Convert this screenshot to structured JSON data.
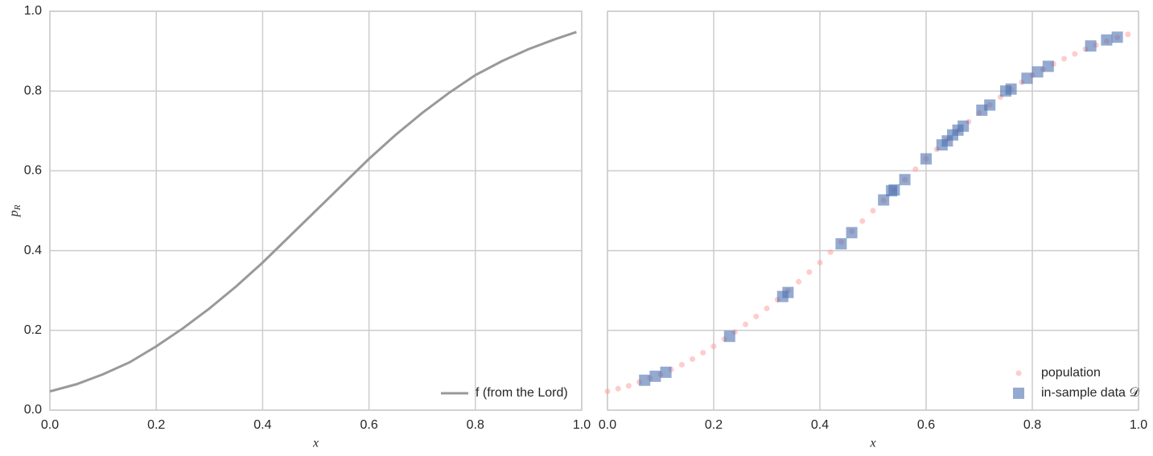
{
  "chart_data": [
    {
      "type": "line",
      "x": [
        0,
        0.05,
        0.1,
        0.15,
        0.2,
        0.25,
        0.3,
        0.35,
        0.4,
        0.45,
        0.5,
        0.55,
        0.6,
        0.65,
        0.7,
        0.75,
        0.8,
        0.85,
        0.9,
        0.95,
        0.99
      ],
      "series": [
        {
          "name": "f (from the Lord)",
          "color": "#999999",
          "values": [
            0.047,
            0.065,
            0.09,
            0.12,
            0.16,
            0.205,
            0.255,
            0.31,
            0.37,
            0.435,
            0.5,
            0.565,
            0.63,
            0.69,
            0.745,
            0.795,
            0.84,
            0.875,
            0.905,
            0.93,
            0.948
          ]
        }
      ],
      "xlim": [
        0,
        1
      ],
      "ylim": [
        0,
        1
      ],
      "xticks": [
        {
          "value": 0,
          "label": "0.0"
        },
        0.2,
        0.4,
        0.6,
        0.8,
        {
          "value": 1,
          "label": "1.0"
        }
      ],
      "yticks": [
        {
          "value": 0,
          "label": "0.0"
        },
        0.2,
        0.4,
        0.6,
        0.8,
        {
          "value": 1,
          "label": "1.0"
        }
      ],
      "xlabel": "x",
      "ylabel": "p",
      "ylabel_subscript": "R",
      "grid": true,
      "legend": "lower right"
    },
    {
      "type": "scatter",
      "series": [
        {
          "name": "population",
          "color": "#ff9999",
          "marker": "circle",
          "x": [
            0,
            0.02,
            0.04,
            0.06,
            0.08,
            0.1,
            0.12,
            0.14,
            0.16,
            0.18,
            0.2,
            0.22,
            0.24,
            0.26,
            0.28,
            0.3,
            0.32,
            0.34,
            0.36,
            0.38,
            0.4,
            0.42,
            0.44,
            0.46,
            0.48,
            0.5,
            0.52,
            0.54,
            0.56,
            0.58,
            0.6,
            0.62,
            0.64,
            0.66,
            0.68,
            0.7,
            0.72,
            0.74,
            0.76,
            0.78,
            0.8,
            0.82,
            0.84,
            0.86,
            0.88,
            0.9,
            0.92,
            0.94,
            0.96,
            0.98
          ],
          "values": [
            0.047,
            0.054,
            0.061,
            0.07,
            0.08,
            0.09,
            0.102,
            0.114,
            0.128,
            0.144,
            0.16,
            0.178,
            0.196,
            0.215,
            0.235,
            0.255,
            0.277,
            0.299,
            0.322,
            0.346,
            0.37,
            0.396,
            0.422,
            0.448,
            0.474,
            0.5,
            0.526,
            0.552,
            0.578,
            0.604,
            0.63,
            0.654,
            0.678,
            0.701,
            0.723,
            0.745,
            0.765,
            0.785,
            0.804,
            0.822,
            0.84,
            0.854,
            0.868,
            0.881,
            0.893,
            0.905,
            0.915,
            0.925,
            0.934,
            0.942
          ]
        },
        {
          "name": "in-sample data 𝒟",
          "color": "#4c72b0",
          "marker": "square",
          "x": [
            0.07,
            0.09,
            0.11,
            0.23,
            0.33,
            0.34,
            0.44,
            0.46,
            0.52,
            0.535,
            0.54,
            0.56,
            0.6,
            0.63,
            0.64,
            0.65,
            0.66,
            0.67,
            0.705,
            0.72,
            0.75,
            0.76,
            0.79,
            0.81,
            0.83,
            0.91,
            0.94,
            0.96
          ],
          "values": [
            0.075,
            0.085,
            0.095,
            0.185,
            0.285,
            0.295,
            0.417,
            0.445,
            0.527,
            0.55,
            0.552,
            0.578,
            0.63,
            0.665,
            0.675,
            0.69,
            0.702,
            0.712,
            0.752,
            0.765,
            0.8,
            0.805,
            0.832,
            0.848,
            0.862,
            0.913,
            0.928,
            0.935
          ]
        }
      ],
      "xlim": [
        0,
        1
      ],
      "ylim": [
        0,
        1
      ],
      "xticks": [
        {
          "value": 0,
          "label": "0.0"
        },
        0.2,
        0.4,
        0.6,
        0.8,
        {
          "value": 1,
          "label": "1.0"
        }
      ],
      "yticks": [
        0,
        0.2,
        0.4,
        0.6,
        0.8,
        1
      ],
      "ytick_labels": false,
      "xlabel": "x",
      "grid": true,
      "legend": "lower right"
    }
  ]
}
